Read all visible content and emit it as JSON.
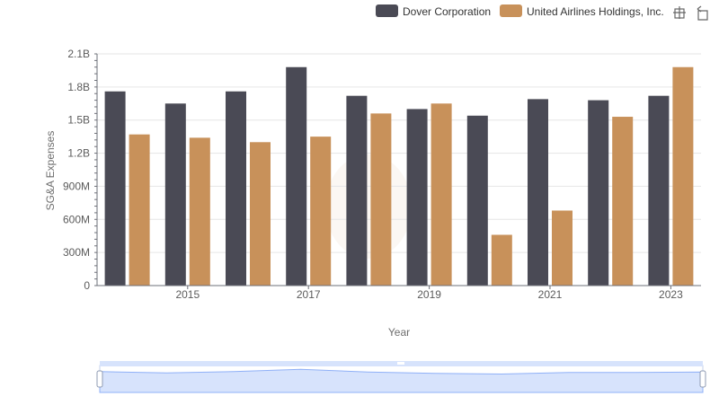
{
  "chart_data": {
    "type": "bar",
    "categories": [
      "2014",
      "2015",
      "2016",
      "2017",
      "2018",
      "2019",
      "2020",
      "2021",
      "2022",
      "2023"
    ],
    "x_tick_labels": [
      "2015",
      "2017",
      "2019",
      "2021",
      "2023"
    ],
    "xlabel": "Year",
    "ylabel": "SG&A Expenses",
    "ylim": [
      0,
      2100000000
    ],
    "y_ticks": [
      {
        "value": 0,
        "label": "0"
      },
      {
        "value": 300000000,
        "label": "300M"
      },
      {
        "value": 600000000,
        "label": "600M"
      },
      {
        "value": 900000000,
        "label": "900M"
      },
      {
        "value": 1200000000,
        "label": "1.2B"
      },
      {
        "value": 1500000000,
        "label": "1.5B"
      },
      {
        "value": 1800000000,
        "label": "1.8B"
      },
      {
        "value": 2100000000,
        "label": "2.1B"
      }
    ],
    "grid": true,
    "legend_position": "top-right",
    "series": [
      {
        "name": "Dover Corporation",
        "color": "#4a4a55",
        "values": [
          1760000000,
          1650000000,
          1760000000,
          1980000000,
          1720000000,
          1600000000,
          1540000000,
          1690000000,
          1680000000,
          1720000000
        ]
      },
      {
        "name": "United Airlines Holdings, Inc.",
        "color": "#c8915a",
        "values": [
          1370000000,
          1340000000,
          1300000000,
          1350000000,
          1560000000,
          1650000000,
          460000000,
          680000000,
          1530000000,
          1980000000
        ]
      }
    ]
  },
  "toolbar": {
    "zoom_icon": "zoom-select-icon",
    "reset_icon": "zoom-reset-icon"
  },
  "colors": {
    "grid": "#e6e6e6",
    "axis": "#6e7079",
    "zoom_fill": "#d7e3fc",
    "zoom_border": "#c5d1eb",
    "zoom_line": "#8fb0f7"
  }
}
